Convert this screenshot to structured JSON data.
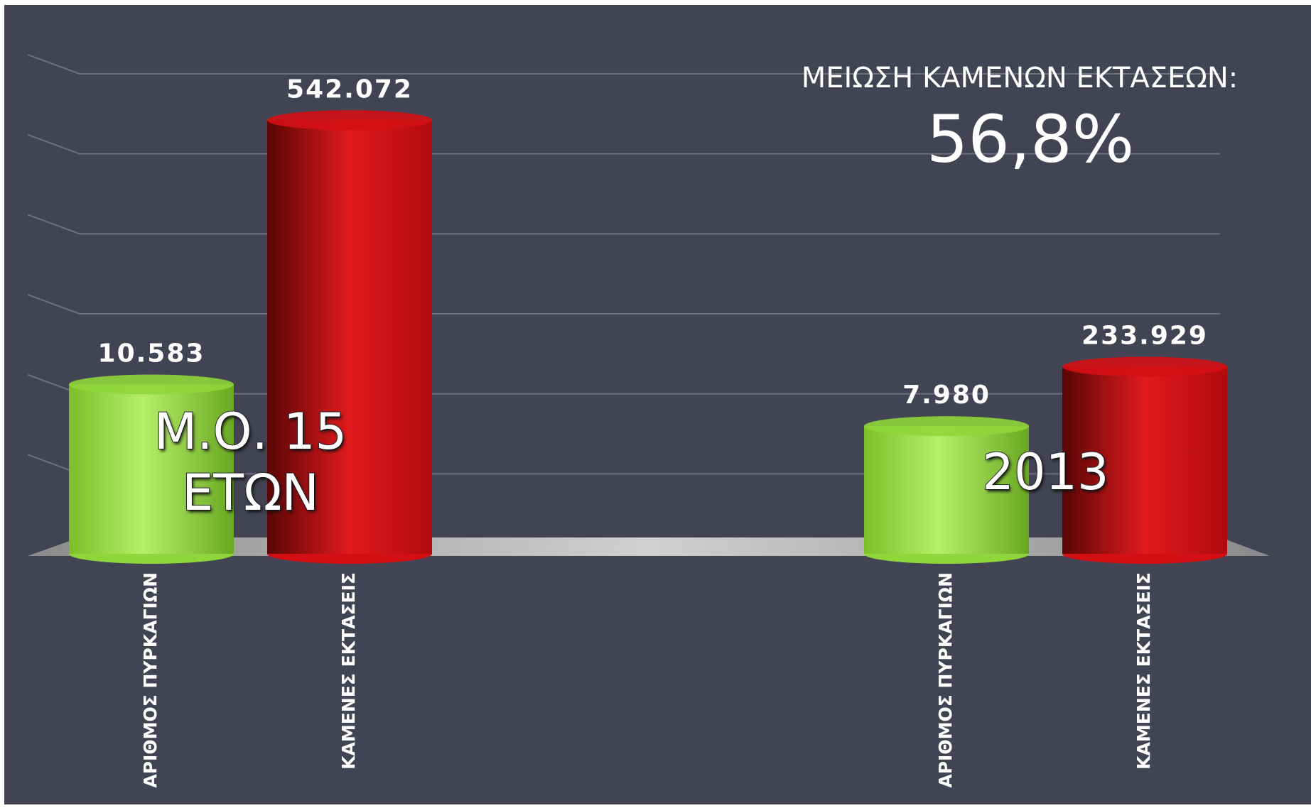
{
  "chart_data": {
    "type": "cylinder-bar",
    "categories": [
      "Μ.Ο. 15 ΕΤΩΝ",
      "2013"
    ],
    "series": [
      {
        "name": "ΑΡΙΘΜΟΣ ΠΥΡΚΑΓΙΩΝ",
        "color": "#8fd63a",
        "values": [
          10583,
          7980
        ],
        "value_labels": [
          "10.583",
          "7.980"
        ],
        "axis": "y2"
      },
      {
        "name": "ΚΑΜΕΝΕΣ ΕΚΤΑΣΕΙΣ",
        "color": "#d40f14",
        "values": [
          542072,
          233929
        ],
        "value_labels": [
          "542.072",
          "233.929"
        ]
      }
    ],
    "ylim": [
      0,
      600000
    ],
    "yticks": [
      100000,
      200000,
      300000,
      400000,
      500000,
      600000
    ],
    "y2lim": [
      0,
      30000
    ],
    "grid": true,
    "annotations": [
      "ΜΕΙΩΣΗ ΚΑΜΕΝΩΝ ΕΚΤΑΣΕΩΝ:",
      "56,8%"
    ]
  }
}
